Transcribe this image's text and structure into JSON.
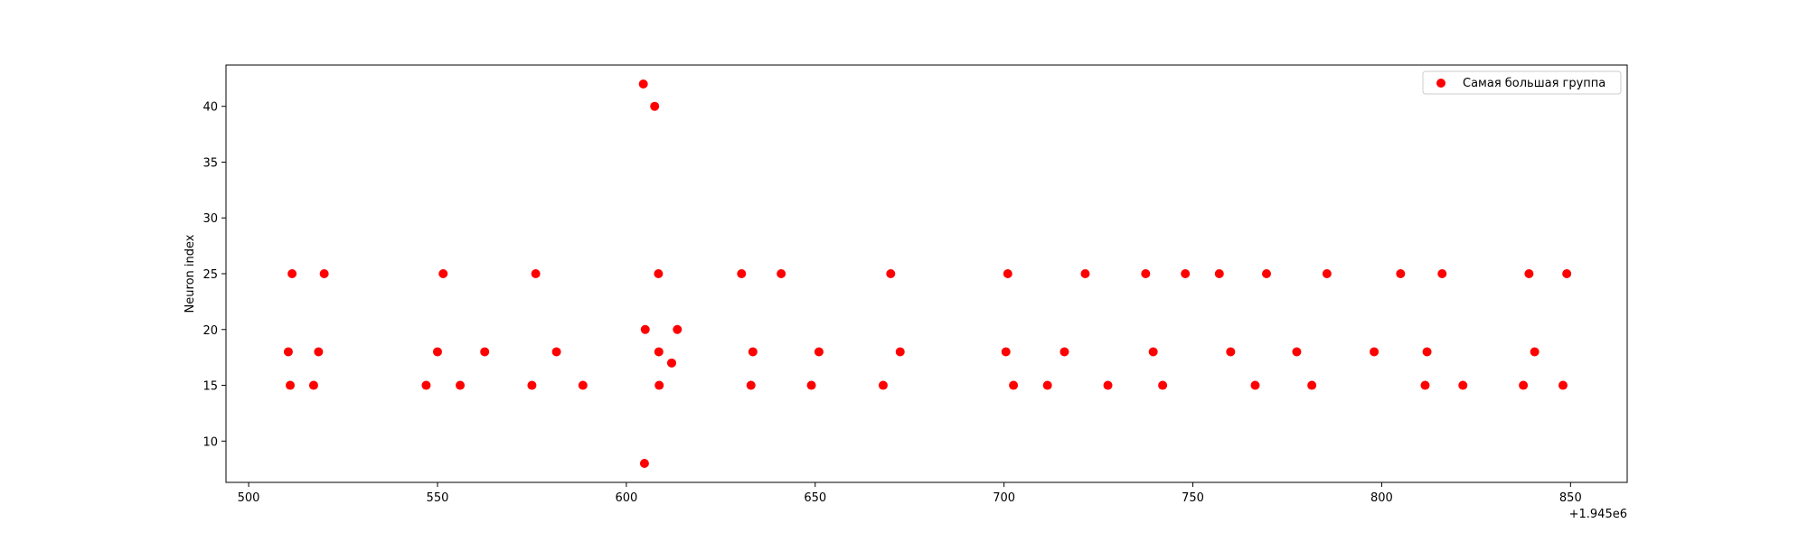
{
  "chart_data": {
    "type": "scatter",
    "title": "",
    "xlabel": "",
    "ylabel": "Neuron index",
    "x_offset_label": "+1.945e6",
    "xlim": [
      1945494,
      1945865
    ],
    "ylim": [
      6.3,
      43.7
    ],
    "xticks": [
      500,
      550,
      600,
      650,
      700,
      750,
      800,
      850
    ],
    "yticks": [
      10,
      15,
      20,
      25,
      30,
      35,
      40
    ],
    "grid": false,
    "legend_position": "top-right",
    "series": [
      {
        "name": "Самая большая группа",
        "color": "#ff0000",
        "points": [
          {
            "x": 1945510.5,
            "y": 18
          },
          {
            "x": 1945511.0,
            "y": 15
          },
          {
            "x": 1945511.5,
            "y": 25
          },
          {
            "x": 1945517.2,
            "y": 15
          },
          {
            "x": 1945518.5,
            "y": 18
          },
          {
            "x": 1945520.0,
            "y": 25
          },
          {
            "x": 1945547.0,
            "y": 15
          },
          {
            "x": 1945550.0,
            "y": 18
          },
          {
            "x": 1945551.5,
            "y": 25
          },
          {
            "x": 1945556.0,
            "y": 15
          },
          {
            "x": 1945562.5,
            "y": 18
          },
          {
            "x": 1945575.0,
            "y": 15
          },
          {
            "x": 1945576.0,
            "y": 25
          },
          {
            "x": 1945581.5,
            "y": 18
          },
          {
            "x": 1945588.5,
            "y": 15
          },
          {
            "x": 1945604.5,
            "y": 42
          },
          {
            "x": 1945604.8,
            "y": 8
          },
          {
            "x": 1945605.0,
            "y": 20
          },
          {
            "x": 1945607.5,
            "y": 40
          },
          {
            "x": 1945608.5,
            "y": 25
          },
          {
            "x": 1945608.6,
            "y": 18
          },
          {
            "x": 1945608.7,
            "y": 15
          },
          {
            "x": 1945612.0,
            "y": 17
          },
          {
            "x": 1945613.5,
            "y": 20
          },
          {
            "x": 1945630.5,
            "y": 25
          },
          {
            "x": 1945633.0,
            "y": 15
          },
          {
            "x": 1945633.5,
            "y": 18
          },
          {
            "x": 1945641.0,
            "y": 25
          },
          {
            "x": 1945649.0,
            "y": 15
          },
          {
            "x": 1945651.0,
            "y": 18
          },
          {
            "x": 1945668.0,
            "y": 15
          },
          {
            "x": 1945670.0,
            "y": 25
          },
          {
            "x": 1945672.5,
            "y": 18
          },
          {
            "x": 1945700.5,
            "y": 18
          },
          {
            "x": 1945701.0,
            "y": 25
          },
          {
            "x": 1945702.5,
            "y": 15
          },
          {
            "x": 1945711.5,
            "y": 15
          },
          {
            "x": 1945716.0,
            "y": 18
          },
          {
            "x": 1945721.5,
            "y": 25
          },
          {
            "x": 1945727.5,
            "y": 15
          },
          {
            "x": 1945737.5,
            "y": 25
          },
          {
            "x": 1945739.5,
            "y": 18
          },
          {
            "x": 1945742.0,
            "y": 15
          },
          {
            "x": 1945748.0,
            "y": 25
          },
          {
            "x": 1945757.0,
            "y": 25
          },
          {
            "x": 1945760.0,
            "y": 18
          },
          {
            "x": 1945766.5,
            "y": 15
          },
          {
            "x": 1945769.5,
            "y": 25
          },
          {
            "x": 1945777.5,
            "y": 18
          },
          {
            "x": 1945781.5,
            "y": 15
          },
          {
            "x": 1945785.5,
            "y": 25
          },
          {
            "x": 1945798.0,
            "y": 18
          },
          {
            "x": 1945805.0,
            "y": 25
          },
          {
            "x": 1945811.5,
            "y": 15
          },
          {
            "x": 1945812.0,
            "y": 18
          },
          {
            "x": 1945816.0,
            "y": 25
          },
          {
            "x": 1945821.5,
            "y": 15
          },
          {
            "x": 1945837.5,
            "y": 15
          },
          {
            "x": 1945839.0,
            "y": 25
          },
          {
            "x": 1945840.5,
            "y": 18
          },
          {
            "x": 1945848.0,
            "y": 15
          },
          {
            "x": 1945849.0,
            "y": 25
          }
        ]
      }
    ]
  }
}
